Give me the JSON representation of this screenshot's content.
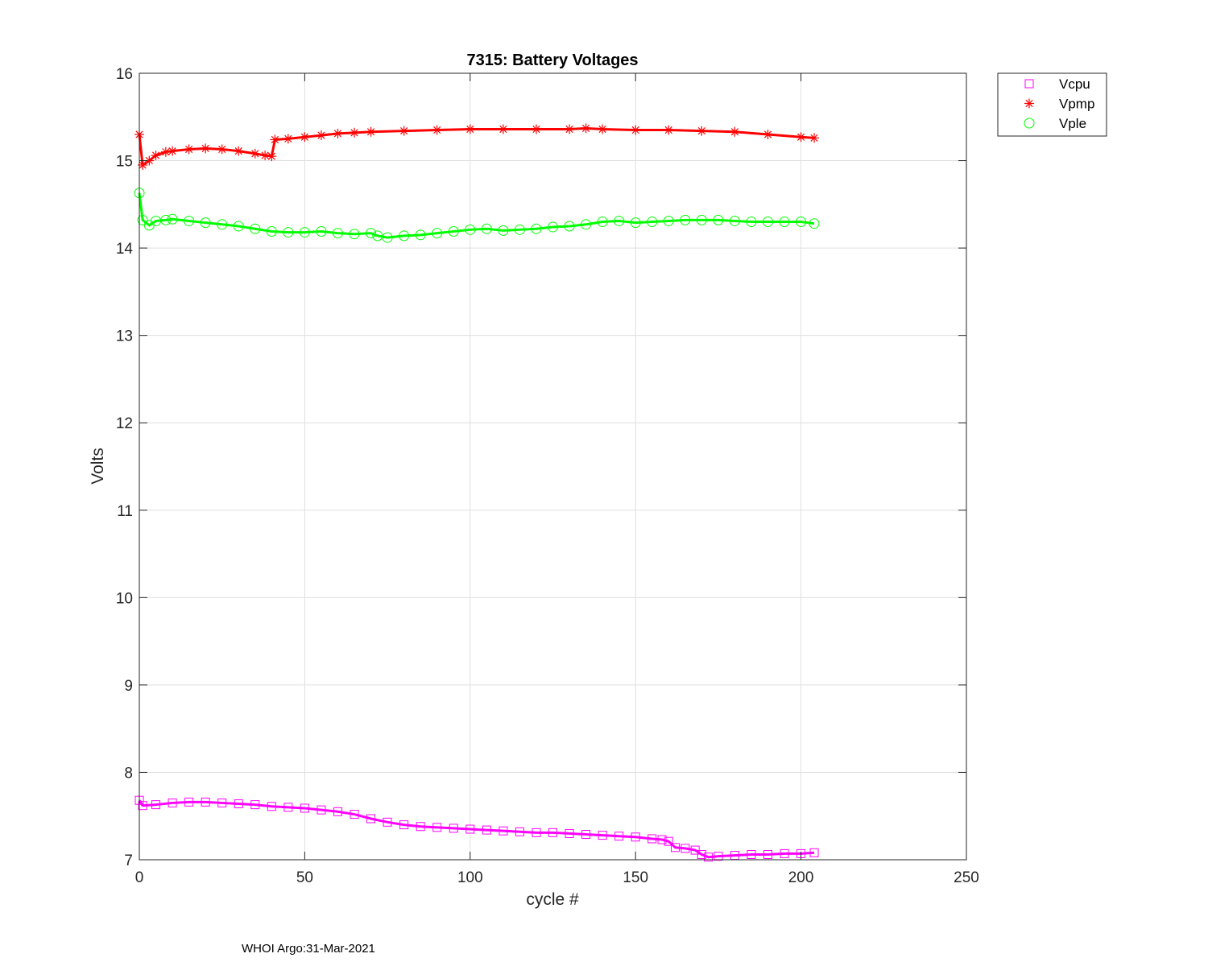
{
  "footer": "WHOI Argo:31-Mar-2021",
  "chart_data": {
    "type": "line",
    "title": "7315: Battery Voltages",
    "xlabel": "cycle #",
    "ylabel": "Volts",
    "xlim": [
      0,
      250
    ],
    "ylim": [
      7,
      16
    ],
    "xticks": [
      0,
      50,
      100,
      150,
      200,
      250
    ],
    "yticks": [
      7,
      8,
      9,
      10,
      11,
      12,
      13,
      14,
      15,
      16
    ],
    "grid": true,
    "legend_position": "outside-top-right",
    "series": [
      {
        "name": "Vcpu",
        "color": "#ff00ff",
        "marker": "square",
        "x": [
          0,
          1,
          5,
          10,
          15,
          20,
          25,
          30,
          35,
          40,
          45,
          50,
          55,
          60,
          65,
          70,
          75,
          80,
          85,
          90,
          95,
          100,
          105,
          110,
          115,
          120,
          125,
          130,
          135,
          140,
          145,
          150,
          155,
          158,
          160,
          162,
          165,
          168,
          170,
          172,
          175,
          180,
          185,
          190,
          195,
          200,
          204
        ],
        "y": [
          7.68,
          7.62,
          7.63,
          7.65,
          7.66,
          7.66,
          7.65,
          7.64,
          7.63,
          7.61,
          7.6,
          7.59,
          7.57,
          7.55,
          7.52,
          7.47,
          7.43,
          7.4,
          7.38,
          7.37,
          7.36,
          7.35,
          7.34,
          7.33,
          7.32,
          7.31,
          7.31,
          7.3,
          7.29,
          7.28,
          7.27,
          7.26,
          7.24,
          7.23,
          7.21,
          7.14,
          7.13,
          7.11,
          7.06,
          7.03,
          7.04,
          7.05,
          7.06,
          7.06,
          7.07,
          7.07,
          7.08
        ]
      },
      {
        "name": "Vpmp",
        "color": "#ff0000",
        "marker": "asterisk",
        "x": [
          0,
          1,
          3,
          5,
          8,
          10,
          15,
          20,
          25,
          30,
          35,
          38,
          40,
          41,
          45,
          50,
          55,
          60,
          65,
          70,
          80,
          90,
          100,
          110,
          120,
          130,
          135,
          140,
          150,
          160,
          170,
          180,
          190,
          200,
          204
        ],
        "y": [
          15.3,
          14.95,
          15.0,
          15.06,
          15.1,
          15.11,
          15.13,
          15.14,
          15.13,
          15.11,
          15.08,
          15.06,
          15.05,
          15.24,
          15.25,
          15.27,
          15.29,
          15.31,
          15.32,
          15.33,
          15.34,
          15.35,
          15.36,
          15.36,
          15.36,
          15.36,
          15.37,
          15.36,
          15.35,
          15.35,
          15.34,
          15.33,
          15.3,
          15.27,
          15.26
        ]
      },
      {
        "name": "Vple",
        "color": "#00ff00",
        "marker": "circle",
        "x": [
          0,
          1,
          3,
          5,
          8,
          10,
          15,
          20,
          25,
          30,
          35,
          40,
          45,
          50,
          55,
          60,
          65,
          70,
          72,
          75,
          80,
          85,
          90,
          95,
          100,
          105,
          110,
          115,
          120,
          125,
          130,
          135,
          140,
          145,
          150,
          155,
          160,
          165,
          170,
          175,
          180,
          185,
          190,
          195,
          200,
          204
        ],
        "y": [
          14.63,
          14.32,
          14.26,
          14.31,
          14.32,
          14.33,
          14.31,
          14.29,
          14.27,
          14.25,
          14.22,
          14.19,
          14.18,
          14.18,
          14.19,
          14.17,
          14.16,
          14.17,
          14.14,
          14.12,
          14.14,
          14.15,
          14.17,
          14.19,
          14.21,
          14.22,
          14.2,
          14.21,
          14.22,
          14.24,
          14.25,
          14.27,
          14.3,
          14.31,
          14.29,
          14.3,
          14.31,
          14.32,
          14.32,
          14.32,
          14.31,
          14.3,
          14.3,
          14.3,
          14.3,
          14.28
        ]
      }
    ]
  }
}
